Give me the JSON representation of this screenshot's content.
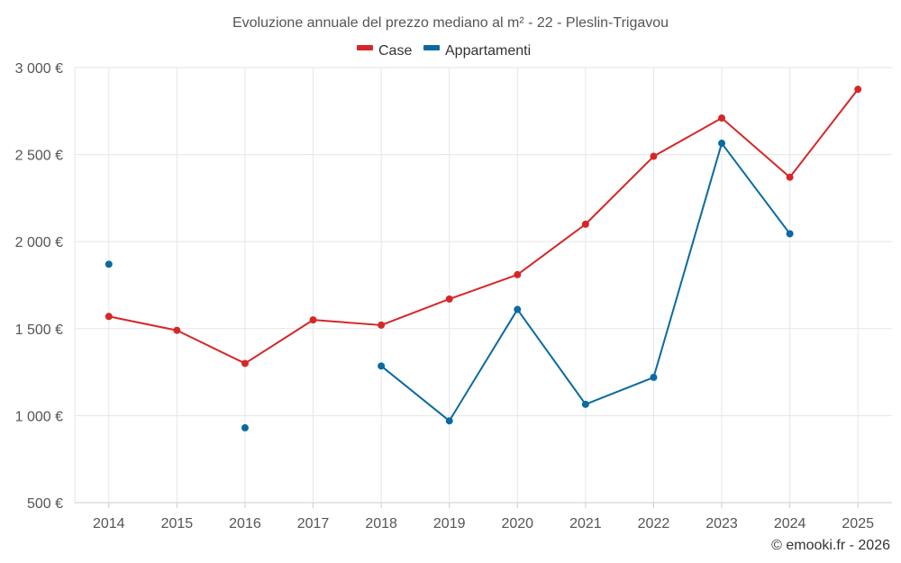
{
  "chart_data": {
    "type": "line",
    "title": "Evoluzione annuale del prezzo mediano al m² - 22 - Pleslin-Trigavou",
    "x": [
      2014,
      2015,
      2016,
      2017,
      2018,
      2019,
      2020,
      2021,
      2022,
      2023,
      2024,
      2025
    ],
    "x_tick_labels": [
      "2014",
      "2015",
      "2016",
      "2017",
      "2018",
      "2019",
      "2020",
      "2021",
      "2022",
      "2023",
      "2024",
      "2025"
    ],
    "ylim": [
      500,
      3000
    ],
    "y_ticks": [
      500,
      1000,
      1500,
      2000,
      2500,
      3000
    ],
    "y_tick_labels": [
      "500 €",
      "1 000 €",
      "1 500 €",
      "2 000 €",
      "2 500 €",
      "3 000 €"
    ],
    "grid": true,
    "legend_position": "top-center",
    "series": [
      {
        "name": "Case",
        "color": "#d62728",
        "values": [
          1570,
          1490,
          1300,
          1550,
          1520,
          1670,
          1810,
          2100,
          2490,
          2710,
          2370,
          2875
        ]
      },
      {
        "name": "Appartamenti",
        "color": "#0a6aa1",
        "values": [
          1870,
          null,
          930,
          null,
          1285,
          970,
          1610,
          1065,
          1220,
          2565,
          2045,
          null
        ]
      }
    ]
  },
  "credit": "© emooki.fr - 2026"
}
